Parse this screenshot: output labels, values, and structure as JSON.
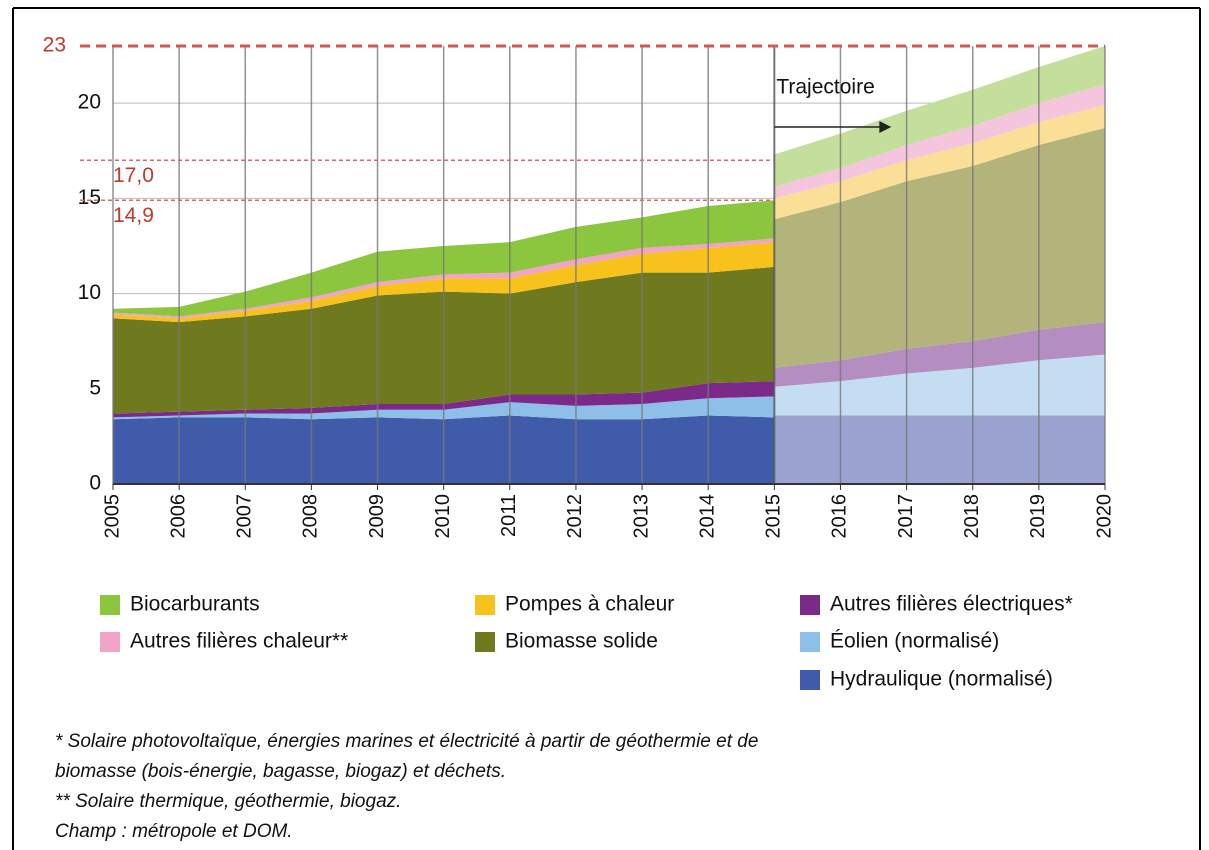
{
  "chart_data": {
    "type": "stacked-area",
    "x": [
      2005,
      2006,
      2007,
      2008,
      2009,
      2010,
      2011,
      2012,
      2013,
      2014,
      2015,
      2016,
      2017,
      2018,
      2019,
      2020
    ],
    "xlim": [
      2005,
      2020
    ],
    "ylim": [
      0,
      23
    ],
    "yticks": [
      0,
      5,
      10,
      15,
      20
    ],
    "grid": true,
    "reference_lines": [
      {
        "value": 23,
        "label": "23"
      },
      {
        "value": 17,
        "label": "17,0"
      },
      {
        "value": 14.9,
        "label": "14,9"
      }
    ],
    "annotation": "Trajectoire",
    "series": [
      {
        "name": "Hydraulique (normalisé)",
        "color": "#3f5ba9",
        "trajectory_color": "#9aa3cf",
        "values": [
          3.4,
          3.5,
          3.5,
          3.4,
          3.5,
          3.4,
          3.6,
          3.4,
          3.4,
          3.6,
          3.5,
          null,
          null,
          null,
          null,
          null
        ],
        "trajectory": [
          null,
          null,
          null,
          null,
          null,
          null,
          null,
          null,
          null,
          null,
          3.6,
          3.6,
          3.6,
          3.6,
          3.6,
          3.6
        ]
      },
      {
        "name": "Éolien (normalisé)",
        "color": "#8dbfe8",
        "trajectory_color": "#c5ddf3",
        "values": [
          0.1,
          0.1,
          0.2,
          0.3,
          0.4,
          0.5,
          0.7,
          0.7,
          0.8,
          0.9,
          1.1,
          null,
          null,
          null,
          null,
          null
        ],
        "trajectory": [
          null,
          null,
          null,
          null,
          null,
          null,
          null,
          null,
          null,
          null,
          1.5,
          1.8,
          2.2,
          2.5,
          2.9,
          3.2
        ]
      },
      {
        "name": "Autres filières électriques*",
        "color": "#7b2a8a",
        "trajectory_color": "#b48ec0",
        "values": [
          0.2,
          0.2,
          0.2,
          0.3,
          0.3,
          0.3,
          0.4,
          0.6,
          0.6,
          0.8,
          0.8,
          null,
          null,
          null,
          null,
          null
        ],
        "trajectory": [
          null,
          null,
          null,
          null,
          null,
          null,
          null,
          null,
          null,
          null,
          1.0,
          1.1,
          1.3,
          1.4,
          1.6,
          1.7
        ]
      },
      {
        "name": "Biomasse solide",
        "color": "#6f7a1e",
        "trajectory_color": "#b3b37c",
        "values": [
          5.0,
          4.7,
          4.9,
          5.2,
          5.7,
          5.9,
          5.3,
          5.9,
          6.3,
          5.8,
          6.0,
          null,
          null,
          null,
          null,
          null
        ],
        "trajectory": [
          null,
          null,
          null,
          null,
          null,
          null,
          null,
          null,
          null,
          null,
          7.8,
          8.3,
          8.8,
          9.2,
          9.7,
          10.2
        ]
      },
      {
        "name": "Pompes à chaleur",
        "color": "#f7c21b",
        "trajectory_color": "#fbdf96",
        "values": [
          0.2,
          0.2,
          0.3,
          0.4,
          0.5,
          0.7,
          0.8,
          0.9,
          1.0,
          1.3,
          1.3,
          null,
          null,
          null,
          null,
          null
        ],
        "trajectory": [
          null,
          null,
          null,
          null,
          null,
          null,
          null,
          null,
          null,
          null,
          1.1,
          1.1,
          1.1,
          1.2,
          1.2,
          1.2
        ]
      },
      {
        "name": "Autres filières chaleur**",
        "color": "#f2a3c8",
        "trajectory_color": "#f5c5dd",
        "values": [
          0.1,
          0.1,
          0.1,
          0.2,
          0.2,
          0.2,
          0.3,
          0.3,
          0.3,
          0.2,
          0.2,
          null,
          null,
          null,
          null,
          null
        ],
        "trajectory": [
          null,
          null,
          null,
          null,
          null,
          null,
          null,
          null,
          null,
          null,
          0.6,
          0.7,
          0.8,
          0.9,
          1.0,
          1.1
        ]
      },
      {
        "name": "Biocarburants",
        "color": "#8cc63f",
        "trajectory_color": "#c3df9b",
        "values": [
          0.2,
          0.5,
          0.9,
          1.3,
          1.6,
          1.5,
          1.6,
          1.7,
          1.6,
          2.0,
          2.0,
          null,
          null,
          null,
          null,
          null
        ],
        "trajectory": [
          null,
          null,
          null,
          null,
          null,
          null,
          null,
          null,
          null,
          null,
          1.7,
          1.8,
          1.8,
          1.9,
          1.9,
          2.0
        ]
      }
    ],
    "notes": [
      "* Solaire photovoltaïque, énergies marines et électricité à partir de géothermie et de",
      "biomasse (bois-énergie, bagasse, biogaz) et déchets.",
      "** Solaire thermique, géothermie, biogaz.",
      "Champ : métropole et DOM."
    ]
  }
}
